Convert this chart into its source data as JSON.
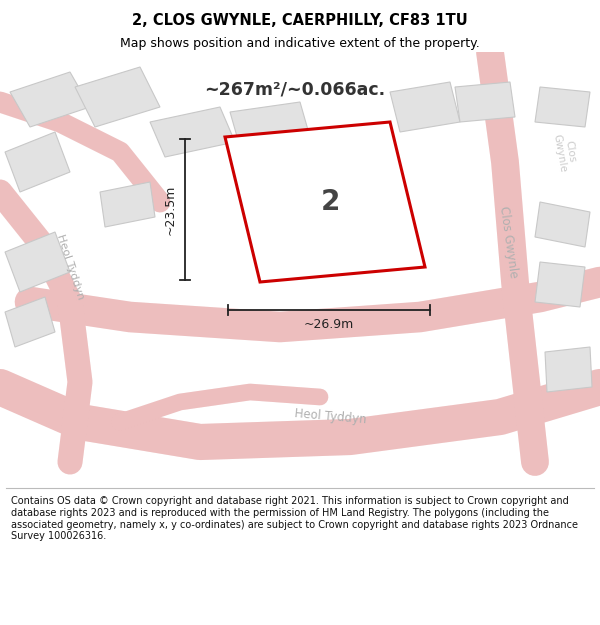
{
  "title": "2, CLOS GWYNLE, CAERPHILLY, CF83 1TU",
  "subtitle": "Map shows position and indicative extent of the property.",
  "footer": "Contains OS data © Crown copyright and database right 2021. This information is subject to Crown copyright and database rights 2023 and is reproduced with the permission of HM Land Registry. The polygons (including the associated geometry, namely x, y co-ordinates) are subject to Crown copyright and database rights 2023 Ordnance Survey 100026316.",
  "area_text": "~267m²/~0.066ac.",
  "dim_width": "~26.9m",
  "dim_height": "~23.5m",
  "plot_number": "2",
  "map_bg": "#efefef",
  "road_fill": "#f2cece",
  "road_edge": "#e09090",
  "building_fill": "#e2e2e2",
  "building_edge": "#c8c8c8",
  "plot_fill": "#ffffff",
  "plot_stroke": "#cc0000",
  "dim_color": "#222222",
  "title_color": "#000000",
  "road_label_color": "#b0b0b0",
  "footer_fontsize": 7.0,
  "title_fontsize": 10.5,
  "subtitle_fontsize": 9.0
}
